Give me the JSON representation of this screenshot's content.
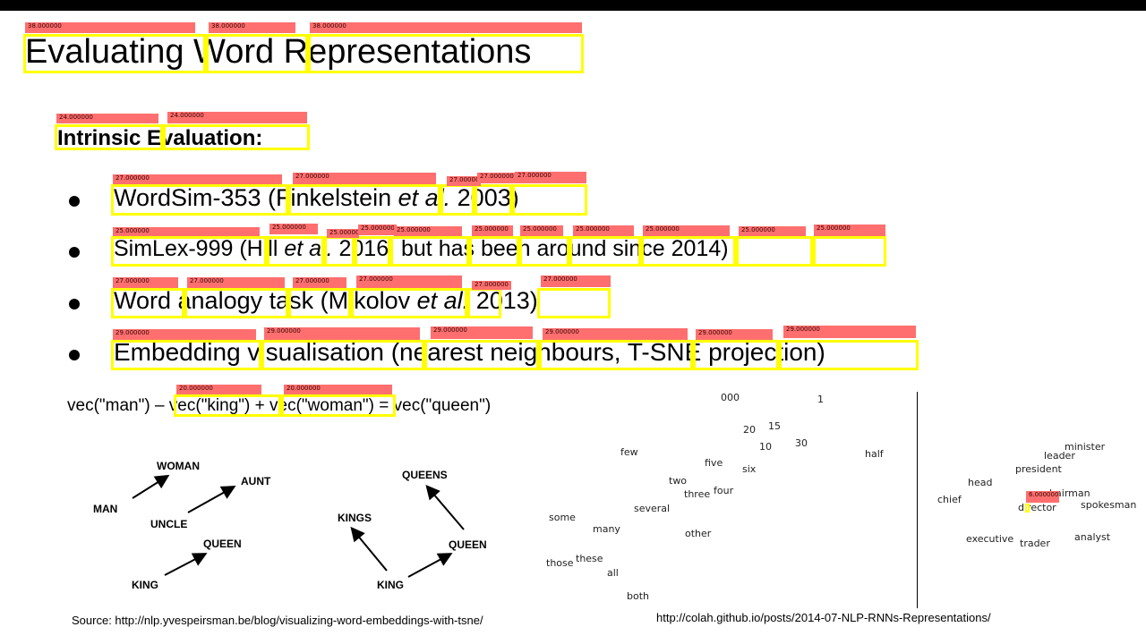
{
  "slide": {
    "title": "Evaluating Word Representations",
    "subtitle": "Intrinsic Evaluation:",
    "bullets": [
      {
        "pre": "WordSim-353 (Finkelstein ",
        "em": "et al.",
        "post": " 2003)"
      },
      {
        "pre": "SimLex-999 (Hill ",
        "em": "et al.",
        "post": " 2016, but has been around since 2014)"
      },
      {
        "pre": "Word analogy task (Mikolov ",
        "em": "et al.",
        "post": " 2013)"
      },
      {
        "pre": "Embedding visualisation (nearest neighbours, T-SNE projection)",
        "em": "",
        "post": ""
      }
    ],
    "equation": "vec(\"man\") – vec(\"king\") + vec(\"woman\") = vec(\"queen\")",
    "source_left": "Source: http://nlp.yvespeirsman.be/blog/visualizing-word-embeddings-with-tsne/",
    "source_right": "http://colah.github.io/posts/2014-07-NLP-RNNs-Representations/"
  },
  "overlay": {
    "color_box": "#ffff00",
    "color_tag": "#ff6f6f",
    "tags": {
      "t38": "38.000000",
      "t24": "24.000000",
      "t27": "27.000000",
      "t25": "25.000000",
      "t29": "29.000000",
      "t20": "20.000000",
      "t6": "6.000000"
    }
  },
  "diagram_left": {
    "labels": {
      "woman": "WOMAN",
      "aunt": "AUNT",
      "man": "MAN",
      "uncle": "UNCLE",
      "queen": "QUEEN",
      "king": "KING"
    }
  },
  "diagram_right": {
    "labels": {
      "queens": "QUEENS",
      "kings": "KINGS",
      "queen": "QUEEN",
      "king": "KING"
    }
  },
  "tsne": {
    "words": {
      "w000": "000",
      "w1": "1",
      "w20": "20",
      "w15": "15",
      "w10": "10",
      "w30": "30",
      "few": "few",
      "half": "half",
      "five": "five",
      "six": "six",
      "two": "two",
      "three": "three",
      "four": "four",
      "several": "several",
      "some": "some",
      "many": "many",
      "other": "other",
      "those": "those",
      "these": "these",
      "all": "all",
      "both": "both",
      "minister": "minister",
      "leader": "leader",
      "president": "president",
      "head": "head",
      "chief": "chief",
      "chairman": "chairman",
      "director": "director",
      "spokesman": "spokesman",
      "executive": "executive",
      "trader": "trader",
      "analyst": "analyst"
    }
  }
}
